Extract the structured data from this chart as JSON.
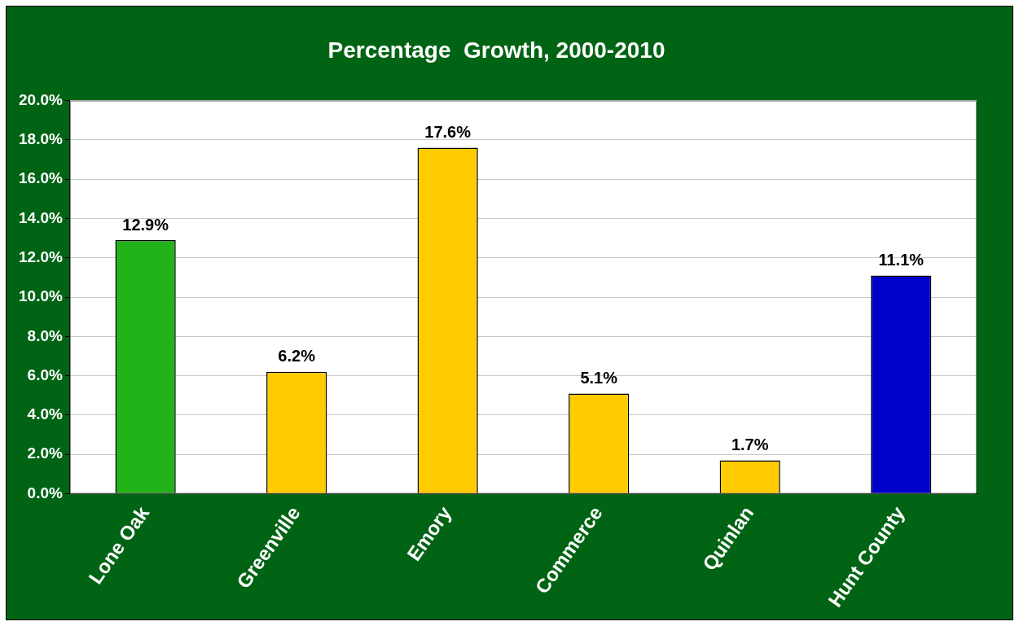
{
  "chart_data": {
    "type": "bar",
    "title": "Percentage  Growth, 2000-2010",
    "categories": [
      "Lone Oak",
      "Greenville",
      "Emory",
      "Commerce",
      "Quinlan",
      "Hunt County"
    ],
    "values": [
      12.9,
      6.2,
      17.6,
      5.1,
      1.7,
      11.1
    ],
    "colors": [
      "#22b21a",
      "#ffcc00",
      "#ffcc00",
      "#ffcc00",
      "#ffcc00",
      "#0000cc"
    ],
    "value_labels": [
      "12.9%",
      "6.2%",
      "17.6%",
      "5.1%",
      "1.7%",
      "11.1%"
    ],
    "ylim": [
      0,
      20
    ],
    "yticks": [
      {
        "value": 0,
        "label": "0.0%"
      },
      {
        "value": 2,
        "label": "2.0%"
      },
      {
        "value": 4,
        "label": "4.0%"
      },
      {
        "value": 6,
        "label": "6.0%"
      },
      {
        "value": 8,
        "label": "8.0%"
      },
      {
        "value": 10,
        "label": "10.0%"
      },
      {
        "value": 12,
        "label": "12.0%"
      },
      {
        "value": 14,
        "label": "14.0%"
      },
      {
        "value": 16,
        "label": "16.0%"
      },
      {
        "value": 18,
        "label": "18.0%"
      },
      {
        "value": 20,
        "label": "20.0%"
      }
    ],
    "grid": "y"
  }
}
